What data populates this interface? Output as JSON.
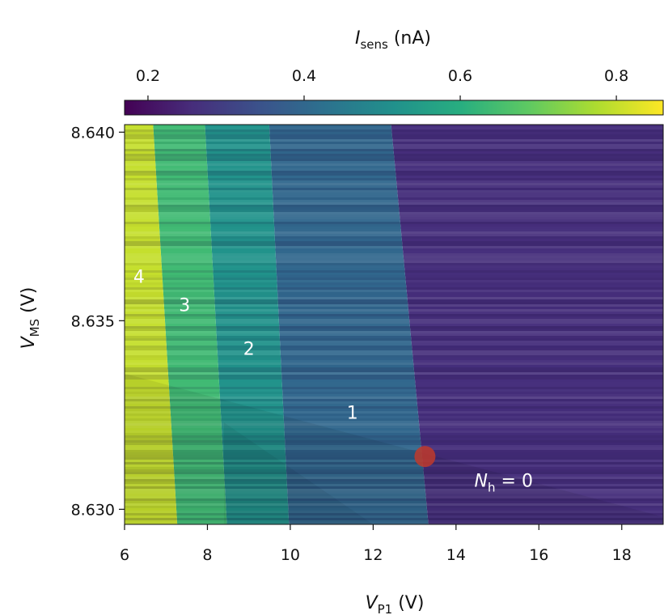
{
  "chart_data": {
    "type": "heatmap",
    "title": "",
    "xlabel": {
      "symbol": "V",
      "subscript": "P1",
      "unit": "(V)"
    },
    "ylabel": {
      "symbol": "V",
      "subscript": "MS",
      "unit": "(V)"
    },
    "x_range": [
      6,
      19
    ],
    "y_range": [
      8.6296,
      8.6402
    ],
    "x_ticks": [
      6,
      8,
      10,
      12,
      14,
      16,
      18
    ],
    "x_tick_labels": [
      "6",
      "8",
      "10",
      "12",
      "14",
      "16",
      "18"
    ],
    "y_ticks": [
      8.63,
      8.635,
      8.64
    ],
    "y_tick_labels": [
      "8.630",
      "8.635",
      "8.640"
    ],
    "colorbar": {
      "label": {
        "symbol": "I",
        "subscript": "sens",
        "unit": "(nA)"
      },
      "range": [
        0.17,
        0.86
      ],
      "ticks": [
        0.2,
        0.4,
        0.6,
        0.8
      ],
      "tick_labels": [
        "0.2",
        "0.4",
        "0.6",
        "0.8"
      ],
      "colormap": "viridis",
      "position": "top"
    },
    "transition_lines": [
      {
        "top": [
          12.45,
          8.64
        ],
        "bottom": [
          13.3,
          8.63
        ]
      },
      {
        "top": [
          9.5,
          8.64
        ],
        "bottom": [
          9.95,
          8.63
        ]
      },
      {
        "top": [
          7.95,
          8.64
        ],
        "bottom": [
          8.45,
          8.63
        ]
      },
      {
        "top": [
          6.7,
          8.64
        ],
        "bottom": [
          7.25,
          8.63
        ]
      }
    ],
    "region_currents": [
      0.26,
      0.4,
      0.52,
      0.64,
      0.8
    ],
    "region_labels": [
      {
        "text": "4",
        "x": 6.35,
        "y": 8.636
      },
      {
        "text": "3",
        "x": 7.45,
        "y": 8.63525
      },
      {
        "text": "2",
        "x": 9.0,
        "y": 8.6341
      },
      {
        "text": "1",
        "x": 11.5,
        "y": 8.6324
      },
      {
        "prefix": "N",
        "subscript": "h",
        "suffix": " = 0",
        "x": 15.15,
        "y": 8.6306
      }
    ],
    "marker": {
      "x": 13.25,
      "y": 8.6314,
      "color": "#c0392b"
    }
  }
}
